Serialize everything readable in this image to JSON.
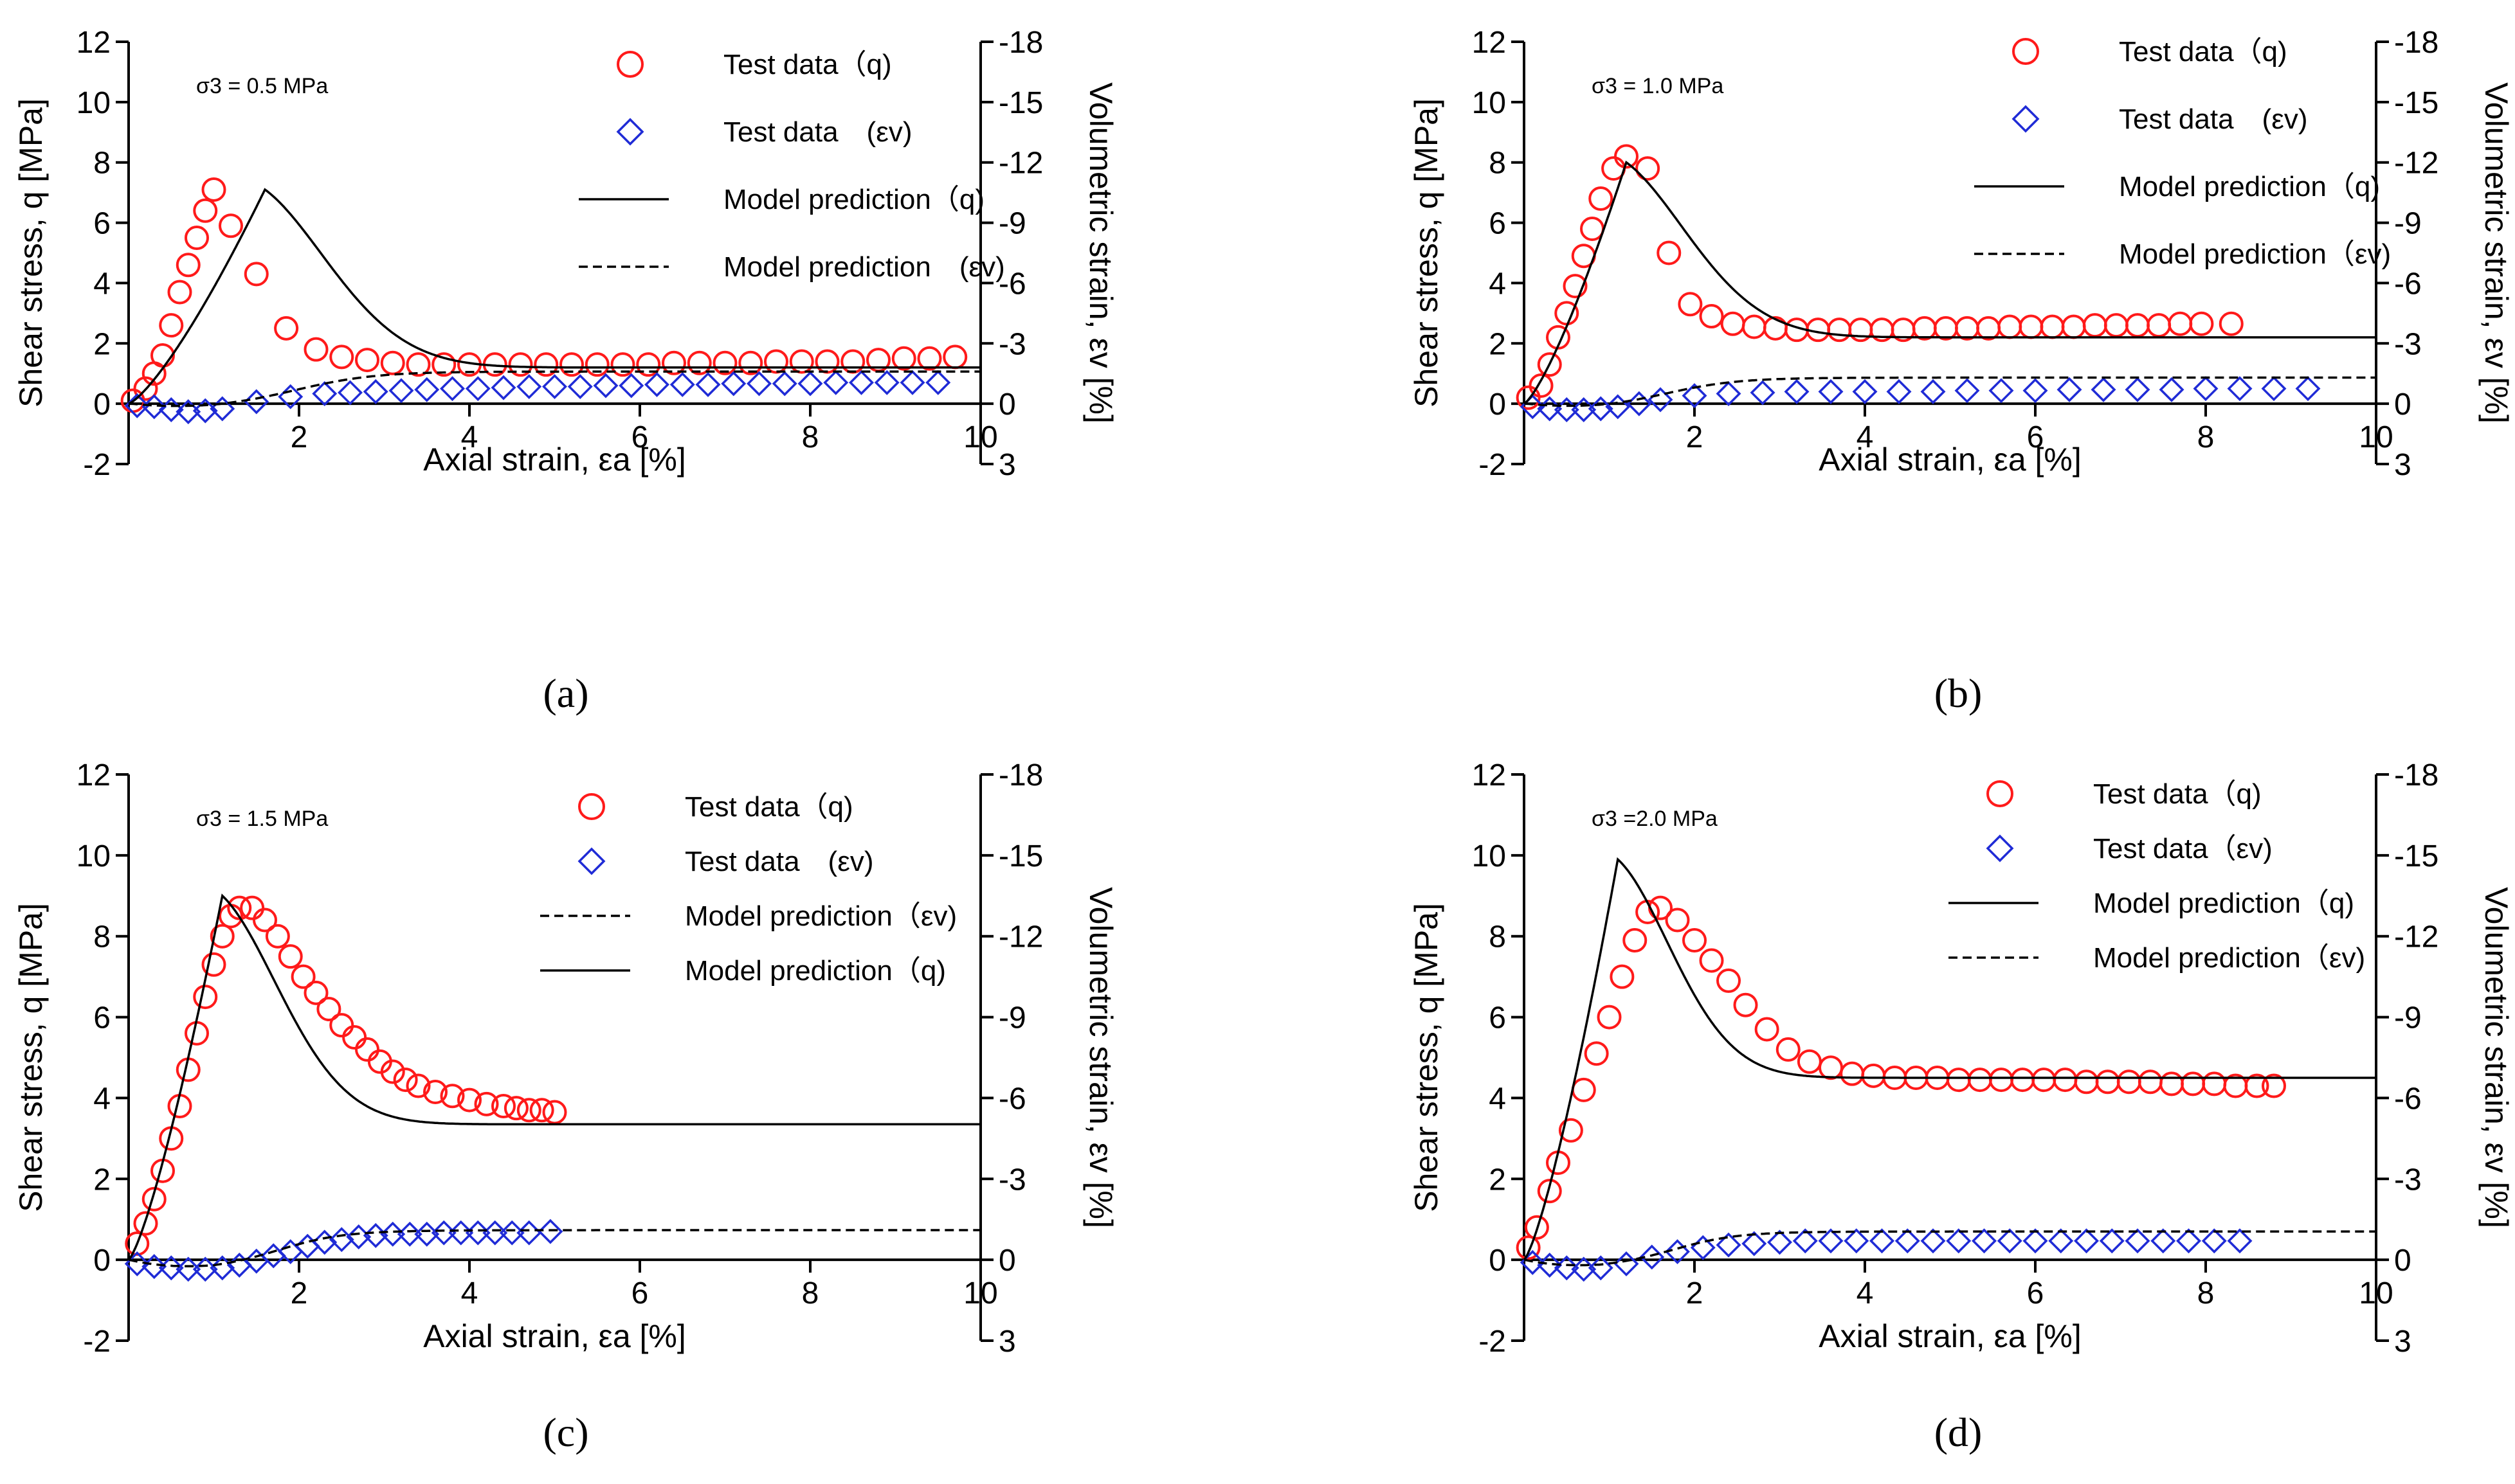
{
  "figure": {
    "panel_labels": [
      "(a)",
      "(b)",
      "(c)",
      "(d)"
    ]
  },
  "colors": {
    "test_q": "#ff1a1a",
    "test_ev": "#1f2bd6",
    "model": "#000000",
    "axis": "#000000"
  },
  "chart_data": [
    {
      "type": "line",
      "panel": "(a)",
      "annotation": "σ3 = 0.5 MPa",
      "xlabel": "Axial strain, εa [%]",
      "ylabel": "Shear stress, q [MPa]",
      "y2label": "Volumetric strain, εv [%]",
      "xlim": [
        0,
        10
      ],
      "ylim": [
        -2,
        12
      ],
      "y2lim": [
        3,
        -18
      ],
      "xticks": [
        2,
        4,
        6,
        8,
        10
      ],
      "yticks": [
        -2,
        0,
        2,
        4,
        6,
        8,
        10,
        12
      ],
      "y2ticks": [
        3,
        0,
        -3,
        -6,
        -9,
        -12,
        -15,
        -18
      ],
      "legend_position": "top-right",
      "legend": [
        "Test data（q)",
        "Test data　(εv)",
        "Model prediction（q)",
        "Model prediction　(εv)"
      ],
      "series": [
        {
          "name": "Test data（q)",
          "kind": "test_q",
          "x": [
            0.05,
            0.2,
            0.3,
            0.4,
            0.5,
            0.6,
            0.7,
            0.8,
            0.9,
            1.0,
            1.2,
            1.5,
            1.85,
            2.2,
            2.5,
            2.8,
            3.1,
            3.4,
            3.7,
            4.0,
            4.3,
            4.6,
            4.9,
            5.2,
            5.5,
            5.8,
            6.1,
            6.4,
            6.7,
            7.0,
            7.3,
            7.6,
            7.9,
            8.2,
            8.5,
            8.8,
            9.1,
            9.4,
            9.7
          ],
          "y": [
            0.1,
            0.5,
            1.0,
            1.6,
            2.6,
            3.7,
            4.6,
            5.5,
            6.4,
            7.1,
            5.9,
            4.3,
            2.5,
            1.8,
            1.55,
            1.45,
            1.35,
            1.3,
            1.3,
            1.3,
            1.3,
            1.3,
            1.3,
            1.3,
            1.3,
            1.3,
            1.3,
            1.35,
            1.35,
            1.35,
            1.35,
            1.4,
            1.4,
            1.4,
            1.4,
            1.45,
            1.5,
            1.5,
            1.55
          ]
        },
        {
          "name": "Test data　(εv)",
          "kind": "test_ev",
          "x": [
            0.1,
            0.3,
            0.5,
            0.7,
            0.9,
            1.1,
            1.5,
            1.9,
            2.3,
            2.6,
            2.9,
            3.2,
            3.5,
            3.8,
            4.1,
            4.4,
            4.7,
            5.0,
            5.3,
            5.6,
            5.9,
            6.2,
            6.5,
            6.8,
            7.1,
            7.4,
            7.7,
            8.0,
            8.3,
            8.6,
            8.9,
            9.2,
            9.5
          ],
          "y": [
            0.1,
            0.15,
            0.3,
            0.4,
            0.35,
            0.25,
            -0.1,
            -0.35,
            -0.5,
            -0.55,
            -0.6,
            -0.65,
            -0.7,
            -0.75,
            -0.75,
            -0.8,
            -0.85,
            -0.85,
            -0.85,
            -0.9,
            -0.9,
            -0.95,
            -0.95,
            -0.95,
            -1.0,
            -1.0,
            -1.0,
            -1.0,
            -1.05,
            -1.05,
            -1.05,
            -1.05,
            -1.05
          ]
        },
        {
          "name": "Model prediction（q)",
          "kind": "model_q",
          "peak_x": 1.6,
          "peak_y": 7.1,
          "residual": 1.2,
          "rise_power": 1.3,
          "decay": 0.55
        },
        {
          "name": "Model prediction　(εv)",
          "kind": "model_ev",
          "dip_x": 1.0,
          "dip": 0.2,
          "final": -1.6,
          "rise_mid": 2.0,
          "rise_rate": 0.9
        }
      ]
    },
    {
      "type": "line",
      "panel": "(b)",
      "annotation": "σ3 = 1.0 MPa",
      "xlabel": "Axial strain, εa [%]",
      "ylabel": "Shear stress, q [MPa]",
      "y2label": "Volumetric strain, εv [%]",
      "xlim": [
        0,
        10
      ],
      "ylim": [
        -2,
        12
      ],
      "y2lim": [
        3,
        -18
      ],
      "xticks": [
        2,
        4,
        6,
        8,
        10
      ],
      "yticks": [
        -2,
        0,
        2,
        4,
        6,
        8,
        10,
        12
      ],
      "y2ticks": [
        3,
        0,
        -3,
        -6,
        -9,
        -12,
        -15,
        -18
      ],
      "legend_position": "top-right",
      "legend": [
        "Test data（q)",
        "Test data　(εv)",
        "Model prediction（q)",
        "Model prediction（εv)"
      ],
      "series": [
        {
          "name": "Test data（q)",
          "kind": "test_q",
          "x": [
            0.05,
            0.2,
            0.3,
            0.4,
            0.5,
            0.6,
            0.7,
            0.8,
            0.9,
            1.05,
            1.2,
            1.45,
            1.7,
            1.95,
            2.2,
            2.45,
            2.7,
            2.95,
            3.2,
            3.45,
            3.7,
            3.95,
            4.2,
            4.45,
            4.7,
            4.95,
            5.2,
            5.45,
            5.7,
            5.95,
            6.2,
            6.45,
            6.7,
            6.95,
            7.2,
            7.45,
            7.7,
            7.95,
            8.3
          ],
          "y": [
            0.2,
            0.6,
            1.3,
            2.2,
            3.0,
            3.9,
            4.9,
            5.8,
            6.8,
            7.8,
            8.2,
            7.8,
            5.0,
            3.3,
            2.9,
            2.65,
            2.55,
            2.5,
            2.45,
            2.45,
            2.45,
            2.45,
            2.45,
            2.45,
            2.5,
            2.5,
            2.5,
            2.5,
            2.55,
            2.55,
            2.55,
            2.55,
            2.6,
            2.6,
            2.6,
            2.6,
            2.65,
            2.65,
            2.65
          ]
        },
        {
          "name": "Test data　(εv)",
          "kind": "test_ev",
          "x": [
            0.1,
            0.3,
            0.5,
            0.7,
            0.9,
            1.1,
            1.35,
            1.6,
            2.0,
            2.4,
            2.8,
            3.2,
            3.6,
            4.0,
            4.4,
            4.8,
            5.2,
            5.6,
            6.0,
            6.4,
            6.8,
            7.2,
            7.6,
            8.0,
            8.4,
            8.8,
            9.2
          ],
          "y": [
            0.15,
            0.25,
            0.3,
            0.3,
            0.25,
            0.15,
            0.0,
            -0.2,
            -0.4,
            -0.5,
            -0.55,
            -0.6,
            -0.6,
            -0.6,
            -0.6,
            -0.6,
            -0.65,
            -0.65,
            -0.65,
            -0.7,
            -0.7,
            -0.7,
            -0.7,
            -0.75,
            -0.75,
            -0.75,
            -0.75
          ]
        },
        {
          "name": "Model prediction（q)",
          "kind": "model_q",
          "peak_x": 1.2,
          "peak_y": 8.0,
          "residual": 2.2,
          "rise_power": 1.3,
          "decay": 0.6
        },
        {
          "name": "Model prediction（εv)",
          "kind": "model_ev",
          "dip_x": 1.0,
          "dip": 0.2,
          "final": -1.3,
          "rise_mid": 1.7,
          "rise_rate": 0.8
        }
      ]
    },
    {
      "type": "line",
      "panel": "(c)",
      "annotation": "σ3 = 1.5 MPa",
      "xlabel": "Axial strain, εa [%]",
      "ylabel": "Shear stress, q [MPa]",
      "y2label": "Volumetric strain, εv [%]",
      "xlim": [
        0,
        10
      ],
      "ylim": [
        -2,
        12
      ],
      "y2lim": [
        3,
        -18
      ],
      "xticks": [
        2,
        4,
        6,
        8,
        10
      ],
      "yticks": [
        -2,
        0,
        2,
        4,
        6,
        8,
        10,
        12
      ],
      "y2ticks": [
        3,
        0,
        -3,
        -6,
        -9,
        -12,
        -15,
        -18
      ],
      "legend_position": "top-right",
      "legend": [
        "Test data（q)",
        "Test data　(εv)",
        "Model prediction（εv)",
        "Model prediction（q)"
      ],
      "series": [
        {
          "name": "Test data（q)",
          "kind": "test_q",
          "x": [
            0.1,
            0.2,
            0.3,
            0.4,
            0.5,
            0.6,
            0.7,
            0.8,
            0.9,
            1.0,
            1.1,
            1.2,
            1.3,
            1.45,
            1.6,
            1.75,
            1.9,
            2.05,
            2.2,
            2.35,
            2.5,
            2.65,
            2.8,
            2.95,
            3.1,
            3.25,
            3.4,
            3.6,
            3.8,
            4.0,
            4.2,
            4.4,
            4.55,
            4.7,
            4.85,
            5.0
          ],
          "y": [
            0.4,
            0.9,
            1.5,
            2.2,
            3.0,
            3.8,
            4.7,
            5.6,
            6.5,
            7.3,
            8.0,
            8.5,
            8.7,
            8.7,
            8.4,
            8.0,
            7.5,
            7.0,
            6.6,
            6.2,
            5.8,
            5.5,
            5.2,
            4.9,
            4.65,
            4.45,
            4.3,
            4.15,
            4.05,
            3.95,
            3.85,
            3.8,
            3.75,
            3.7,
            3.7,
            3.65
          ]
        },
        {
          "name": "Test data　(εv)",
          "kind": "test_ev",
          "x": [
            0.1,
            0.3,
            0.5,
            0.7,
            0.9,
            1.1,
            1.3,
            1.5,
            1.7,
            1.9,
            2.1,
            2.3,
            2.5,
            2.7,
            2.9,
            3.1,
            3.3,
            3.5,
            3.7,
            3.9,
            4.1,
            4.3,
            4.5,
            4.7,
            4.95
          ],
          "y": [
            0.15,
            0.25,
            0.3,
            0.35,
            0.35,
            0.3,
            0.2,
            0.05,
            -0.15,
            -0.3,
            -0.5,
            -0.65,
            -0.75,
            -0.85,
            -0.9,
            -0.95,
            -0.95,
            -0.95,
            -1.0,
            -1.0,
            -1.0,
            -1.0,
            -1.0,
            -1.0,
            -1.05
          ]
        },
        {
          "name": "Model prediction（εv)",
          "kind": "model_ev",
          "dip_x": 1.0,
          "dip": 0.3,
          "final": -1.1,
          "rise_mid": 1.8,
          "rise_rate": 0.7
        },
        {
          "name": "Model prediction（q)",
          "kind": "model_q",
          "peak_x": 1.1,
          "peak_y": 9.0,
          "residual": 3.35,
          "rise_power": 1.3,
          "decay": 0.75
        }
      ]
    },
    {
      "type": "line",
      "panel": "(d)",
      "annotation": "σ3 =2.0 MPa",
      "xlabel": "Axial strain, εa [%]",
      "ylabel": "Shear stress, q [MPa]",
      "y2label": "Volumetric strain, εv [%]",
      "xlim": [
        0,
        10
      ],
      "ylim": [
        -2,
        12
      ],
      "y2lim": [
        3,
        -18
      ],
      "xticks": [
        2,
        4,
        6,
        8,
        10
      ],
      "yticks": [
        -2,
        0,
        2,
        4,
        6,
        8,
        10,
        12
      ],
      "y2ticks": [
        3,
        0,
        -3,
        -6,
        -9,
        -12,
        -15,
        -18
      ],
      "legend_position": "top-right",
      "legend": [
        "Test data（q)",
        "Test data（εv)",
        "Model prediction（q)",
        "Model prediction（εv)"
      ],
      "series": [
        {
          "name": "Test data（q)",
          "kind": "test_q",
          "x": [
            0.05,
            0.15,
            0.3,
            0.4,
            0.55,
            0.7,
            0.85,
            1.0,
            1.15,
            1.3,
            1.45,
            1.6,
            1.8,
            2.0,
            2.2,
            2.4,
            2.6,
            2.85,
            3.1,
            3.35,
            3.6,
            3.85,
            4.1,
            4.35,
            4.6,
            4.85,
            5.1,
            5.35,
            5.6,
            5.85,
            6.1,
            6.35,
            6.6,
            6.85,
            7.1,
            7.35,
            7.6,
            7.85,
            8.1,
            8.35,
            8.6,
            8.8
          ],
          "y": [
            0.3,
            0.8,
            1.7,
            2.4,
            3.2,
            4.2,
            5.1,
            6.0,
            7.0,
            7.9,
            8.6,
            8.7,
            8.4,
            7.9,
            7.4,
            6.9,
            6.3,
            5.7,
            5.2,
            4.9,
            4.75,
            4.6,
            4.55,
            4.5,
            4.5,
            4.5,
            4.45,
            4.45,
            4.45,
            4.45,
            4.45,
            4.45,
            4.4,
            4.4,
            4.4,
            4.4,
            4.35,
            4.35,
            4.35,
            4.3,
            4.3,
            4.3
          ]
        },
        {
          "name": "Test data（εv)",
          "kind": "test_ev",
          "x": [
            0.1,
            0.3,
            0.5,
            0.7,
            0.9,
            1.2,
            1.5,
            1.8,
            2.1,
            2.4,
            2.7,
            3.0,
            3.3,
            3.6,
            3.9,
            4.2,
            4.5,
            4.8,
            5.1,
            5.4,
            5.7,
            6.0,
            6.3,
            6.6,
            6.9,
            7.2,
            7.5,
            7.8,
            8.1,
            8.4
          ],
          "y": [
            0.1,
            0.2,
            0.3,
            0.35,
            0.3,
            0.15,
            -0.1,
            -0.3,
            -0.45,
            -0.55,
            -0.6,
            -0.65,
            -0.7,
            -0.7,
            -0.7,
            -0.7,
            -0.7,
            -0.7,
            -0.7,
            -0.7,
            -0.7,
            -0.7,
            -0.7,
            -0.7,
            -0.7,
            -0.7,
            -0.7,
            -0.7,
            -0.7,
            -0.7
          ]
        },
        {
          "name": "Model prediction（q)",
          "kind": "model_q",
          "peak_x": 1.1,
          "peak_y": 9.9,
          "residual": 4.5,
          "rise_power": 1.3,
          "decay": 0.9
        },
        {
          "name": "Model prediction（εv)",
          "kind": "model_ev",
          "dip_x": 0.9,
          "dip": 0.25,
          "final": -1.05,
          "rise_mid": 1.8,
          "rise_rate": 0.7
        }
      ]
    }
  ]
}
